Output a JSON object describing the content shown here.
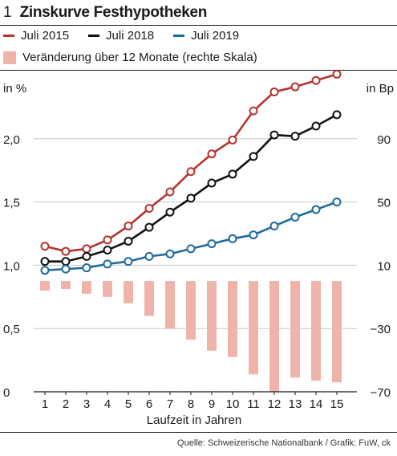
{
  "header": {
    "number": "1",
    "title": "Zinskurve Festhypotheken"
  },
  "legend": {
    "items": [
      {
        "label": "Juli 2015",
        "color": "#b5332e"
      },
      {
        "label": "Juli 2018",
        "color": "#111111"
      },
      {
        "label": "Juli 2019",
        "color": "#1f6a9e"
      }
    ],
    "bar_label": "Veränderung über 12 Monate (rechte Skala)",
    "bar_color": "#eeb4aa"
  },
  "footer": {
    "source": "Quelle: Schweizerische Nationalbank / Grafik: FuW, ck"
  },
  "chart_data": {
    "type": "line",
    "title": "Zinskurve Festhypotheken",
    "xlabel": "Laufzeit in Jahren",
    "ylabel_left": "in %",
    "ylabel_right": "in Bp",
    "categories": [
      1,
      2,
      3,
      4,
      5,
      6,
      7,
      8,
      9,
      10,
      11,
      12,
      13,
      14,
      15
    ],
    "ylim_left": [
      0,
      2.5
    ],
    "ylim_right": [
      -70,
      130
    ],
    "yticks_left": [
      "0",
      "0,5",
      "1,0",
      "1,5",
      "2,0"
    ],
    "yticks_left_values": [
      0,
      0.5,
      1.0,
      1.5,
      2.0
    ],
    "yticks_right": [
      "−70",
      "−30",
      "10",
      "50",
      "90"
    ],
    "yticks_right_values": [
      -70,
      -30,
      10,
      50,
      90
    ],
    "series": [
      {
        "name": "Juli 2015",
        "color": "#b5332e",
        "axis": "left",
        "values": [
          1.15,
          1.11,
          1.13,
          1.2,
          1.31,
          1.45,
          1.58,
          1.74,
          1.88,
          1.99,
          2.22,
          2.37,
          2.41,
          2.46,
          2.51
        ]
      },
      {
        "name": "Juli 2018",
        "color": "#111111",
        "axis": "left",
        "values": [
          1.03,
          1.03,
          1.07,
          1.12,
          1.19,
          1.3,
          1.42,
          1.53,
          1.65,
          1.72,
          1.86,
          2.03,
          2.02,
          2.1,
          2.19
        ]
      },
      {
        "name": "Juli 2019",
        "color": "#1f6a9e",
        "axis": "left",
        "values": [
          0.96,
          0.97,
          0.98,
          1.01,
          1.03,
          1.07,
          1.09,
          1.13,
          1.17,
          1.21,
          1.24,
          1.31,
          1.38,
          1.44,
          1.5
        ]
      }
    ],
    "bars": {
      "name": "Veränderung über 12 Monate (rechte Skala)",
      "color": "#eeb4aa",
      "axis": "right",
      "values": [
        -6,
        -5,
        -8,
        -10,
        -14,
        -22,
        -30,
        -37,
        -44,
        -48,
        -59,
        -70,
        -61,
        -63,
        -64
      ]
    },
    "grid": true
  }
}
